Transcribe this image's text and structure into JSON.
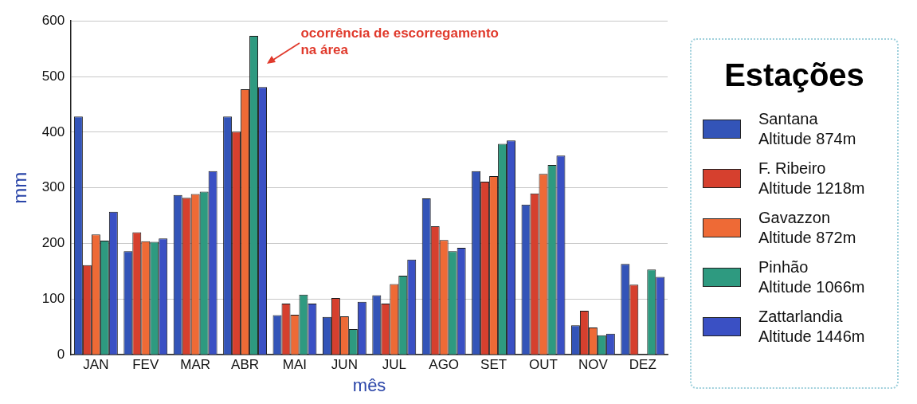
{
  "chart_data": {
    "type": "bar",
    "xlabel": "mês",
    "ylabel": "mm",
    "legend_title": "Estações",
    "categories": [
      "JAN",
      "FEV",
      "MAR",
      "ABR",
      "MAI",
      "JUN",
      "JUL",
      "AGO",
      "SET",
      "OUT",
      "NOV",
      "DEZ"
    ],
    "series": [
      {
        "name": "Santana\nAltitude 874m",
        "color": "#3354b8",
        "values": [
          428,
          186,
          287,
          428,
          71,
          68,
          107,
          281,
          330,
          270,
          53,
          163
        ]
      },
      {
        "name": "F. Ribeiro\nAltitude 1218m",
        "color": "#d6402e",
        "values": [
          161,
          220,
          282,
          401,
          92,
          102,
          92,
          231,
          311,
          290,
          79,
          126
        ]
      },
      {
        "name": "Gavazzon\nAltitude 872m",
        "color": "#ee6a36",
        "values": [
          216,
          204,
          289,
          477,
          72,
          69,
          127,
          206,
          321,
          325,
          49,
          null
        ]
      },
      {
        "name": "Pinhão\nAltitude 1066m",
        "color": "#2e9a80",
        "values": [
          205,
          203,
          293,
          573,
          108,
          46,
          142,
          186,
          379,
          341,
          35,
          153
        ]
      },
      {
        "name": "Zattarlandia\nAltitude 1446m",
        "color": "#3a50c4",
        "values": [
          257,
          209,
          330,
          481,
          92,
          95,
          171,
          192,
          385,
          358,
          38,
          140
        ]
      }
    ],
    "ylim": [
      0,
      600
    ],
    "yticks": [
      0,
      100,
      200,
      300,
      400,
      500,
      600
    ],
    "grid": "y",
    "legend": "right",
    "annotations": [
      "ocorrência de escorregamento\nna área"
    ]
  }
}
